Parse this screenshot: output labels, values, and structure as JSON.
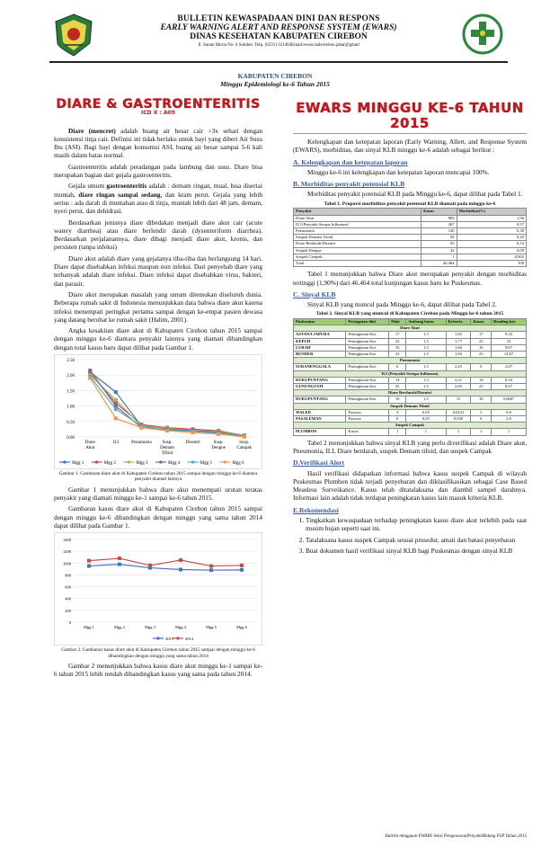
{
  "header": {
    "line1": "BULLETIN KEWASPADAAN DINI DAN RESPONS",
    "line2": "EARLY WARNING ALERT AND RESPONSE SYSTEM (EWARS)",
    "line3": "DINAS KESEHATAN KABUPATEN CIREBON",
    "address": "Jl. Sunan Muria No. 6 Sumber. Telp. (0231) 321464Email:ewars.kabcirebon.jabar@gmail",
    "right_logo_text": "BAKTI HUSADA"
  },
  "subheader": {
    "region": "KABUPATEN CIREBON",
    "week": "Minggu Epidemiologi ke-6 Tahun 2015"
  },
  "left": {
    "title": "DIARE & GASTROENTERITIS",
    "icd": "ICD X : A09",
    "p1_bold": "Diare (mencret)",
    "p1": " adalah buang air besar cair >3x sehari dengan konsistensi tinja cair. Definisi ini tidak berlaku untuk bayi yang diberi Air Susu Ibu (ASI). Bagi bayi dengan konsumsi ASI, buang air besar sampai 5-6 kali masih dalam batas normal.",
    "p2": "Gastroenteritis adalah peradangan pada lambung dan usus. Diare bisa merupakan bagian dari gejala gastroenteritis.",
    "p3a": "Gejala umum ",
    "p3b": "gastroenteritis",
    "p3c": " adalah : demam ringan, mual, bisa disertai muntah, ",
    "p3d": "diare ringan sampai sedang",
    "p3e": ", dan kram perut. Gejala yang lebih serius : ada darah di muntahan atau di tinja, muntah lebih dari 48 jam, demam, nyeri perut, dan dehidrasi.",
    "p4": "Berdasarkan jenisnya diare dibedakan menjadi diare akut cair (acute watery diarrhea) atau diare berlendir darah (dysenteriform diarrhea). Berdasarkan perjalanannya, diare dibagi menjadi diare akut, kronis, dan persisten (tanpa infeksi)",
    "p5": "Diare akut adalah diare yang gejalanya tiba-tiba dan berlangsung 14 hari. Diare dapat disebabkan infeksi maupun non infeksi. Dari penyebab diare yang terbanyak adalah diare infeksi. Diare infeksi dapat disebabkan virus, bakteri, dan parasit.",
    "p6": "Diare akut merupakan masalah yang umum ditemukan diseluruh dunia. Beberapa rumah sakit di Indonesia menunjukkan data bahwa diare akut karena infeksi menempati peringkat pertama sampai dengan ke-empat pasien dewasa yang datang berobat ke rumah sakit (Halim, 2001).",
    "p7": "Angka kesakitan diare akut di Kabupaten Cirebon tahun 2015 sampai dengan minggu ke-6 diantara penyakit lainnya yang diamati dibandingkan dengan total kasus baru dapat dilihat pada Gambar 1.",
    "fig1_caption": "Gambar 1. Gambaran diare akut di Kabupaten Cirebon tahun 2015 sampai dengan minggu ke-6 diantara penyakit diamati lainnya",
    "p8": "Gambar 1 menunjukkan bahwa diare akut menempati urutan teratas penyakit yang diamati minggu ke-1 sampai ke-6 tahun 2015.",
    "p9": "Gambaran kasus diare akut di Kabupaten Cirebon tahun 2015 sampai dengan minggu ke-6 dibandingkan dengan minggu yang sama tahun 2014 dapat dilihat pada Gambar 1.",
    "fig2_caption": "Gambar 2. Gambaran kasus diare akut di Kabupaten Cirebon tahun 2015 sampai dengan minggu ke-6 dibandingkan dengan minggu yang sama tahun 2014",
    "p10": "Gambar 2 menunjukkan bahwa kasus diare akut minggu ke-1 sampai ke-6 tahun 2015 lebih rendah dibandingkan kasus yang sama pada tahun 2014."
  },
  "right": {
    "title": "EWARS MINGGU KE-6 TAHUN 2015",
    "intro": "Kelengkapan dan ketepatan laporan (Early Warning, Allert, and Response System (EWARS), morbiditas, dan sinyal KLB minggu ke-6 adalah sebagai berikut :",
    "secA": "A. Kelengkapan dan ketepatan laporan",
    "secA_text": "Minggu ke-6 ini kelengkapan dan ketepatan laporan mencapai 100%.",
    "secB": "B. Morbiditas penyakit potensial KLB",
    "secB_text": "Morbiditas penyakit potensial KLB pada Minggu ke-6, dapat dilihat pada Tabel 1.",
    "t1_caption": "Tabel 1. Proporsi morbiditas penyakit potensial KLB diamati pada minggu ke-6",
    "t1_headers": [
      "Penyakit",
      "Kasus",
      "Morbiditas(%)"
    ],
    "t1_rows": [
      [
        "Diare Akut",
        "885",
        "1,90"
      ],
      [
        "ILI (Penyakit Serupa Influenza)",
        "267",
        "0,57"
      ],
      [
        "Pneumonia",
        "140",
        "0,30"
      ],
      [
        "Suspek Demam Tifoid",
        "94",
        "0,20"
      ],
      [
        "Diare Berdarah/Disentri",
        "65",
        "0,14"
      ],
      [
        "Suspek Dengue",
        "42",
        "0,09"
      ],
      [
        "Suspek Campak",
        "1",
        "0,002"
      ],
      [
        "Total",
        "46.464",
        "100"
      ]
    ],
    "t1_text": "Tabel 1 menunjukkan bahwa Diare akut merupakan penyakit dengan morbiditas tertinggi (1,90%) dari 46.464 total kunjungan kasus baru ke Puskesmas.",
    "secC": "C. Sinyal KLB",
    "secC_text": "Sinyal KLB yang muncul pada Minggu ke-6, dapat dilihat pada Tabel 2.",
    "t2_caption": "Tabel 2. Sinyal KLB yang muncul di Kabupaten Cirebon pada Minggu ke-6 tahun 2015",
    "t2_headers": [
      "Puskesmas",
      "Peringatan dini",
      "Nilai",
      "Ambang batas",
      "Kriteria",
      "Kasus",
      "Rendi­ng kas"
    ],
    "t2_groups": [
      {
        "name": "Diare Akut",
        "rows": [
          [
            "ASTANA JAPURA",
            "Peningkatan Kas",
            "17",
            "1,5",
            "1,82",
            "17",
            "9,33"
          ],
          [
            "KEPUH",
            "Peningkatan Kas",
            "23",
            "1,5",
            "1,77",
            "23",
            "13"
          ],
          [
            "LURAH",
            "Peningkatan Kas",
            "16",
            "1,5",
            "1,66",
            "16",
            "9,67"
          ],
          [
            "BUNDER",
            "Peningkatan Kas",
            "23",
            "1,5",
            "1,82",
            "23",
            "12,67"
          ]
        ]
      },
      {
        "name": "Pneumonia",
        "rows": [
          [
            "SURANENGGALA",
            "Peningkatan Kas",
            "6",
            "1,5",
            "2,25",
            "6",
            "2,67"
          ]
        ]
      },
      {
        "name": "ILI (Penyakit Serupa Influenza)",
        "rows": [
          [
            "DUKUPUNTANG",
            "Peningkatan Kas",
            "14",
            "1,5",
            "2,21",
            "14",
            "6,33"
          ],
          [
            "GUNUNGJATI",
            "Peningkatan Kas",
            "23",
            "1,5",
            "2,65",
            "23",
            "8,67"
          ]
        ]
      },
      {
        "name": "Diare Berdarah/Disentri",
        "rows": [
          [
            "DUKUPUNTANG",
            "Peningkatan Kas",
            "10",
            "1,5",
            "15",
            "10",
            "0,6667"
          ]
        ]
      },
      {
        "name": "Suspek Demam Tifoid",
        "rows": [
          [
            "WALED",
            "Poisson",
            "3",
            "0,05",
            "0,0231",
            "3",
            "0,6"
          ],
          [
            "PASALEMAN",
            "Poisson",
            "6",
            "0,05",
            "0,049",
            "6",
            "2,6"
          ]
        ]
      },
      {
        "name": "Suspek Campak",
        "rows": [
          [
            "PLUMBON",
            "Kasus",
            "1",
            "1",
            "1",
            "1",
            "1"
          ]
        ]
      }
    ],
    "t2_text": "Tabel 2 menunjukkan bahwa sinyal KLB yang perlu diverifikasi adalah Diare akut, Pneumonia, ILI, Diare berdarah, suspek Demam tifoid, dan suspek Campak",
    "secD": "D.Verifikasi Alert",
    "secD_text": "Hasil verifikasi didapatkan informasi bahwa kasus suspek Campak di wilayah Puskesmas Plumbon tidak terjadi penyebaran dan diklasifikasikan sebagai Case Based Measless Surveikance. Kasus telah ditatalaksana dan diambil sampel darahnya. Informasi lain adalah tidak terdapat peningkatan kasus lain masuk kriteria KLB.",
    "secE": "E.Rekomendasi",
    "recs": [
      "Tingkatkan kewaspadaan terhadap peningkatan kasus diare akut terlebih pada saat musim hujan seperti saat ini.",
      "Tatalaksana kasus suspek Campak sesuai prosedur, amati dan batasi penyebaran",
      "Buat dokumen hasil verifikasi sinyal KLB bagi Puskesmas dengan sinyal KLB"
    ]
  },
  "footer": "Buletin mingguan EWARS Seksi PengawasanPenyakitBidang P2P Tahun 2015",
  "chart_data": [
    {
      "type": "line",
      "categories": [
        "Diare Akut",
        "ILI",
        "Pneumonia",
        "Susp. Demam Tifoid",
        "Disentri",
        "Susp. Dengue",
        "Susp. Campak"
      ],
      "ylim": [
        0,
        2.5
      ],
      "yticks": [
        "0.00",
        "0.50",
        "1.00",
        "1.50",
        "2.00",
        "2.50"
      ],
      "series": [
        {
          "name": "Mgg 1",
          "color": "#4472c4",
          "values": [
            2.1,
            1.45,
            0.35,
            0.3,
            0.2,
            0.15,
            0.05
          ]
        },
        {
          "name": "Mgg 2",
          "color": "#c0504d",
          "values": [
            2.05,
            1.1,
            0.4,
            0.3,
            0.25,
            0.2,
            0.05
          ]
        },
        {
          "name": "Mgg 3",
          "color": "#9bbb59",
          "values": [
            2.0,
            1.2,
            0.35,
            0.28,
            0.2,
            0.18,
            0.05
          ]
        },
        {
          "name": "Mgg 4",
          "color": "#8064a2",
          "values": [
            2.15,
            1.0,
            0.3,
            0.25,
            0.2,
            0.15,
            0.03
          ]
        },
        {
          "name": "Mgg 5",
          "color": "#4bacc6",
          "values": [
            1.95,
            0.9,
            0.35,
            0.22,
            0.18,
            0.12,
            0.03
          ]
        },
        {
          "name": "Mgg 6",
          "color": "#f79646",
          "values": [
            1.9,
            0.6,
            0.3,
            0.2,
            0.14,
            0.09,
            0.002
          ]
        }
      ]
    },
    {
      "type": "line",
      "categories": [
        "Mgg 1",
        "Mgg 2",
        "Mgg 3",
        "Mgg 4",
        "Mgg 5",
        "Mgg 6"
      ],
      "ylim": [
        0,
        1400
      ],
      "yticks": [
        "0",
        "200",
        "400",
        "600",
        "800",
        "1000",
        "1200",
        "1400"
      ],
      "series": [
        {
          "name": "2015",
          "color": "#4472c4",
          "values": [
            950,
            980,
            920,
            890,
            880,
            885
          ]
        },
        {
          "name": "2014",
          "color": "#c0504d",
          "values": [
            1040,
            1080,
            960,
            1050,
            950,
            960
          ]
        }
      ]
    }
  ]
}
